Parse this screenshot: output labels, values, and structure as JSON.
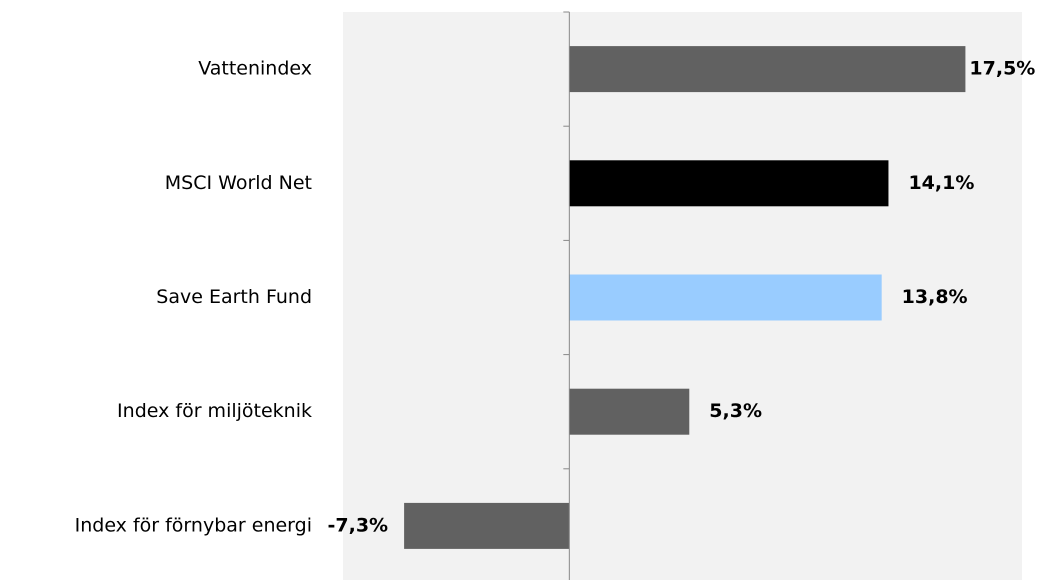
{
  "chart_data": {
    "type": "hbar",
    "categories": [
      "Vattenindex",
      "MSCI World Net",
      "Save Earth Fund",
      "Index för miljöteknik",
      "Index för förnybar energi"
    ],
    "values": [
      17.5,
      14.1,
      13.8,
      5.3,
      -7.3
    ],
    "value_labels": [
      "17,5%",
      "14,1%",
      "13,8%",
      "5,3%",
      "-7,3%"
    ],
    "colors": [
      "#616161",
      "#000000",
      "#99ccff",
      "#616161",
      "#616161"
    ],
    "xlim": [
      -10,
      20
    ]
  }
}
